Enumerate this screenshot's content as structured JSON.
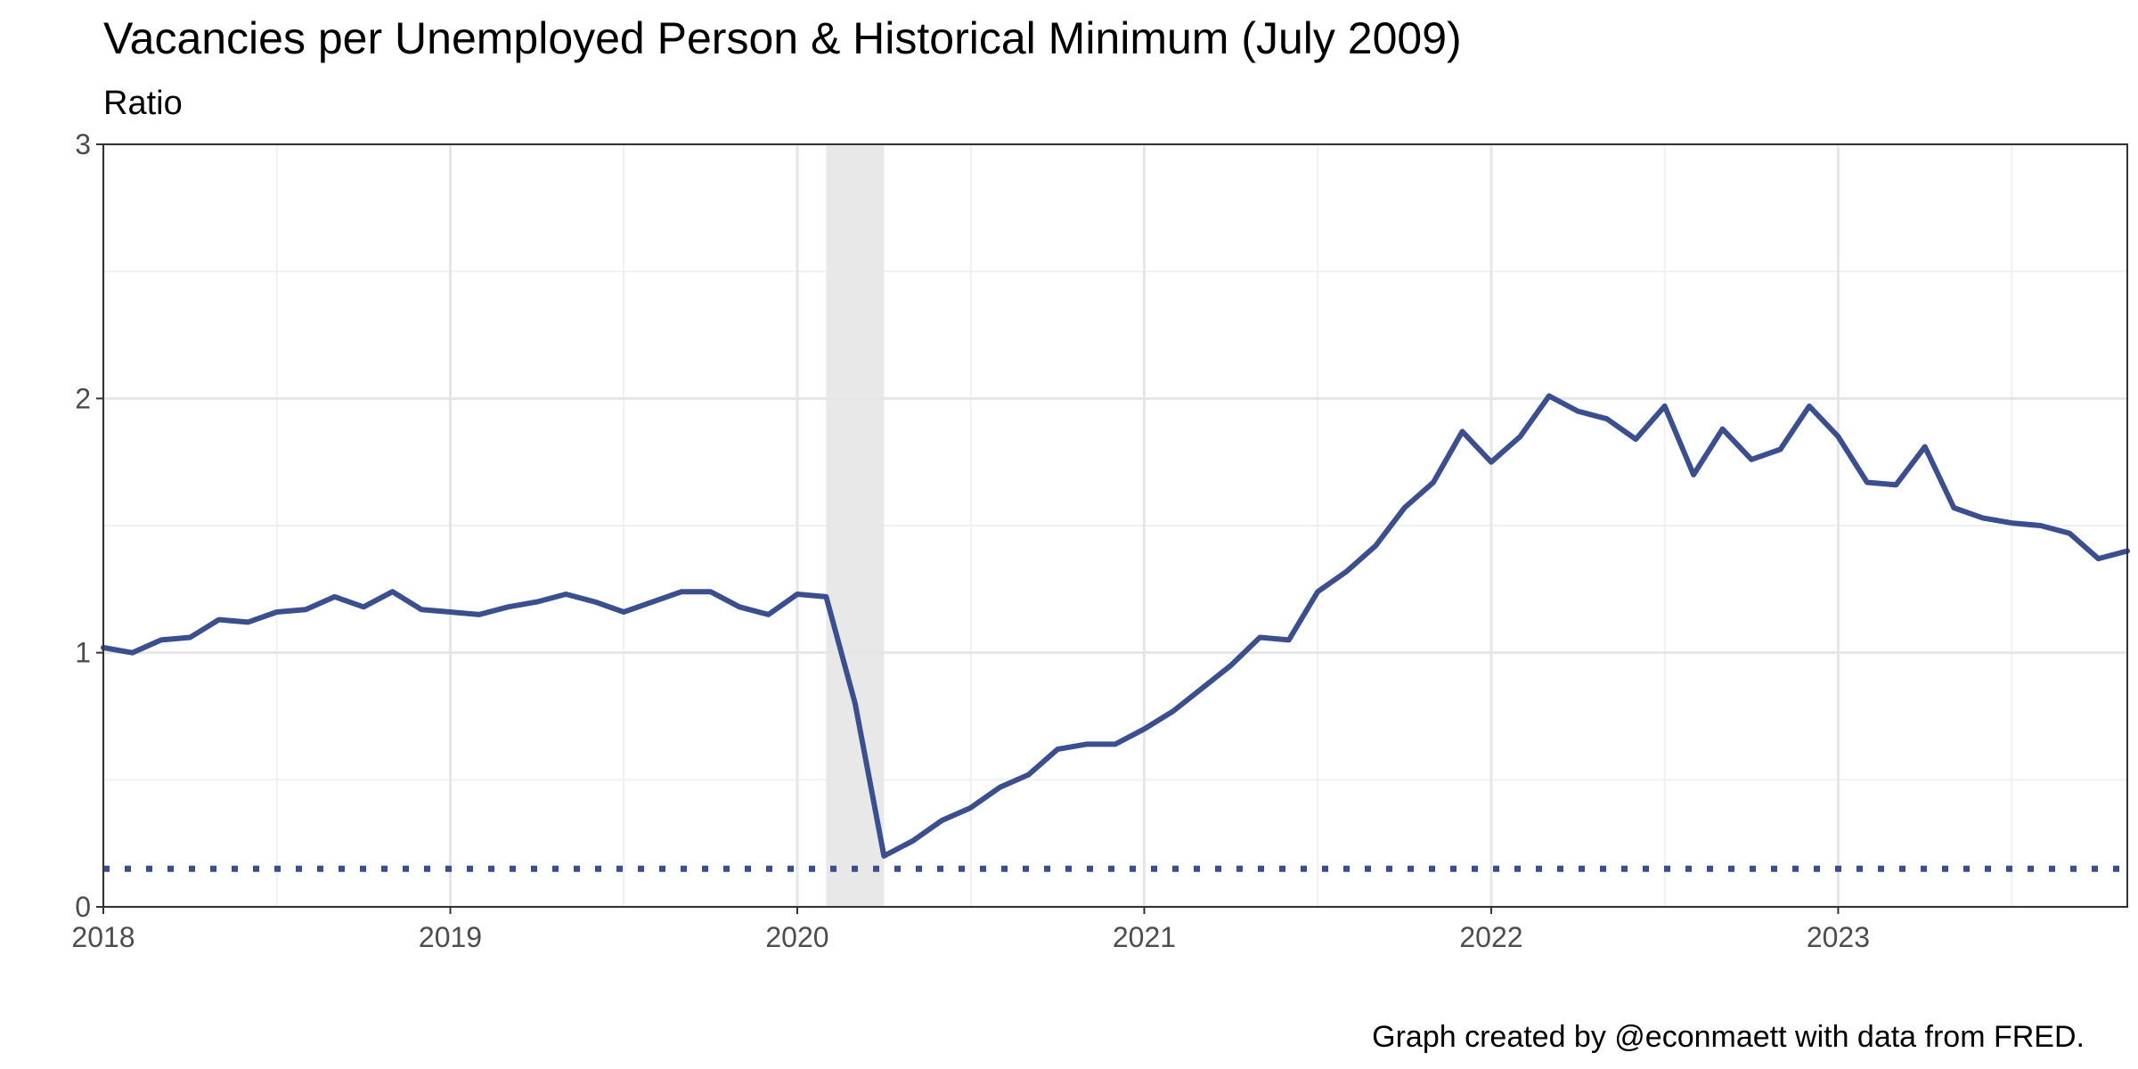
{
  "chart_data": {
    "type": "line",
    "title": "Vacancies per Unemployed Person & Historical Minimum (July 2009)",
    "subtitle": "Ratio",
    "caption": "Graph created by @econmaett with data from FRED.",
    "xlim": [
      "2018-01-01",
      "2023-11-01"
    ],
    "ylim": [
      0,
      3
    ],
    "x_ticks": [
      "2018",
      "2019",
      "2020",
      "2021",
      "2022",
      "2023"
    ],
    "y_ticks": [
      "0",
      "1",
      "2",
      "3"
    ],
    "grid": true,
    "recession_shading": {
      "start": "2020-02",
      "end": "2020-04",
      "color": "#e5e5e5"
    },
    "series": [
      {
        "color": "#3b4f8f",
        "style": "solid",
        "x": [
          "2018-01",
          "2018-02",
          "2018-03",
          "2018-04",
          "2018-05",
          "2018-06",
          "2018-07",
          "2018-08",
          "2018-09",
          "2018-10",
          "2018-11",
          "2018-12",
          "2019-01",
          "2019-02",
          "2019-03",
          "2019-04",
          "2019-05",
          "2019-06",
          "2019-07",
          "2019-08",
          "2019-09",
          "2019-10",
          "2019-11",
          "2019-12",
          "2020-01",
          "2020-02",
          "2020-03",
          "2020-04",
          "2020-05",
          "2020-06",
          "2020-07",
          "2020-08",
          "2020-09",
          "2020-10",
          "2020-11",
          "2020-12",
          "2021-01",
          "2021-02",
          "2021-03",
          "2021-04",
          "2021-05",
          "2021-06",
          "2021-07",
          "2021-08",
          "2021-09",
          "2021-10",
          "2021-11",
          "2021-12",
          "2022-01",
          "2022-02",
          "2022-03",
          "2022-04",
          "2022-05",
          "2022-06",
          "2022-07",
          "2022-08",
          "2022-09",
          "2022-10",
          "2022-11",
          "2022-12",
          "2023-01",
          "2023-02",
          "2023-03",
          "2023-04",
          "2023-05",
          "2023-06",
          "2023-07",
          "2023-08",
          "2023-09",
          "2023-10",
          "2023-11"
        ],
        "values": [
          1.02,
          1.0,
          1.05,
          1.06,
          1.13,
          1.12,
          1.16,
          1.17,
          1.22,
          1.18,
          1.24,
          1.17,
          1.16,
          1.15,
          1.18,
          1.2,
          1.23,
          1.2,
          1.16,
          1.2,
          1.24,
          1.24,
          1.18,
          1.15,
          1.23,
          1.22,
          0.8,
          0.2,
          0.26,
          0.34,
          0.39,
          0.47,
          0.52,
          0.62,
          0.64,
          0.64,
          0.7,
          0.77,
          0.86,
          0.95,
          1.06,
          1.05,
          1.24,
          1.32,
          1.42,
          1.57,
          1.67,
          1.87,
          1.75,
          1.85,
          2.01,
          1.95,
          1.92,
          1.84,
          1.97,
          1.7,
          1.88,
          1.76,
          1.8,
          1.97,
          1.85,
          1.67,
          1.66,
          1.81,
          1.57,
          1.53,
          1.51,
          1.5,
          1.47,
          1.37,
          1.4
        ]
      },
      {
        "color": "#3b4f8f",
        "style": "dotted",
        "values": [
          0.15
        ]
      }
    ]
  }
}
